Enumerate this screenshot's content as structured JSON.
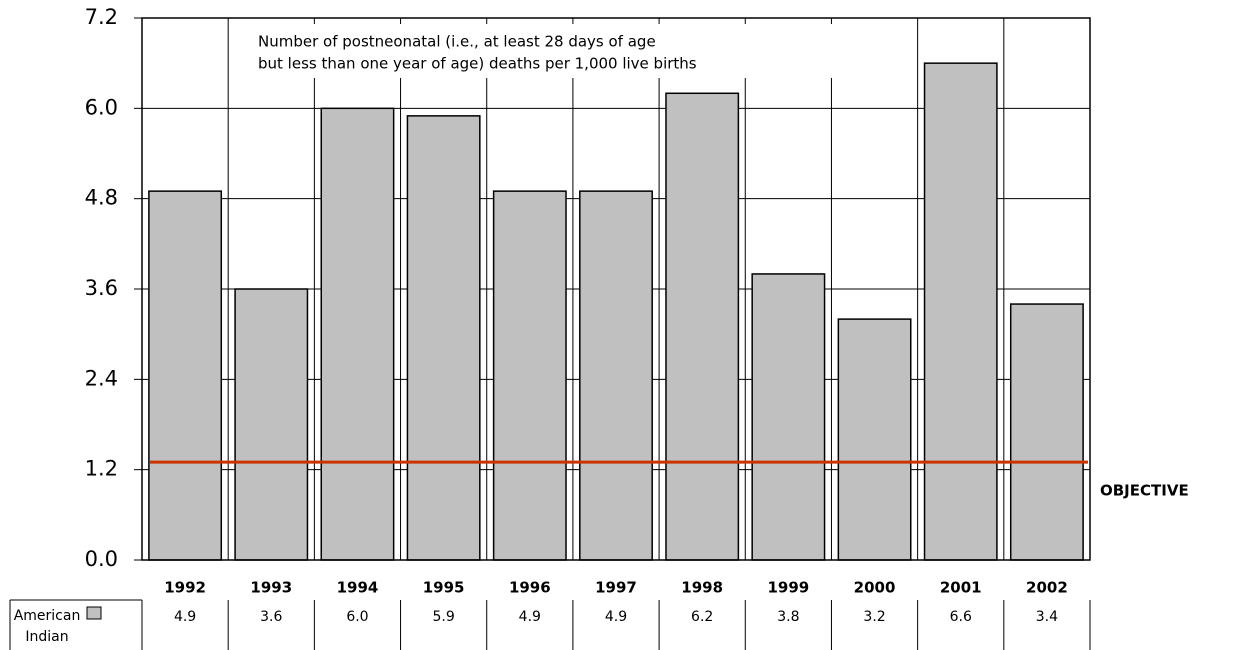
{
  "chart_data": {
    "type": "bar",
    "annotation": [
      "Number of postneonatal (i.e., at least 28 days of age",
      "but less than one year of age) deaths per 1,000 live births"
    ],
    "categories": [
      "1992",
      "1993",
      "1994",
      "1995",
      "1996",
      "1997",
      "1998",
      "1999",
      "2000",
      "2001",
      "2002"
    ],
    "series": [
      {
        "name": "American Indian",
        "color": "#c0c0c0",
        "values": [
          4.9,
          3.6,
          6.0,
          5.9,
          4.9,
          4.9,
          6.2,
          3.8,
          3.2,
          6.6,
          3.4
        ],
        "value_labels": [
          "4.9",
          "3.6",
          "6.0",
          "5.9",
          "4.9",
          "4.9",
          "6.2",
          "3.8",
          "3.2",
          "6.6",
          "3.4"
        ]
      }
    ],
    "objective": {
      "label": "OBJECTIVE",
      "value": 1.3,
      "color": "#cc3300"
    },
    "ylim": [
      0,
      7.2
    ],
    "yticks": [
      {
        "value": 0,
        "label": "0.0"
      },
      1.2,
      2.4,
      3.6,
      4.8,
      {
        "value": 6,
        "label": "6.0"
      },
      7.2
    ],
    "grid": true
  }
}
